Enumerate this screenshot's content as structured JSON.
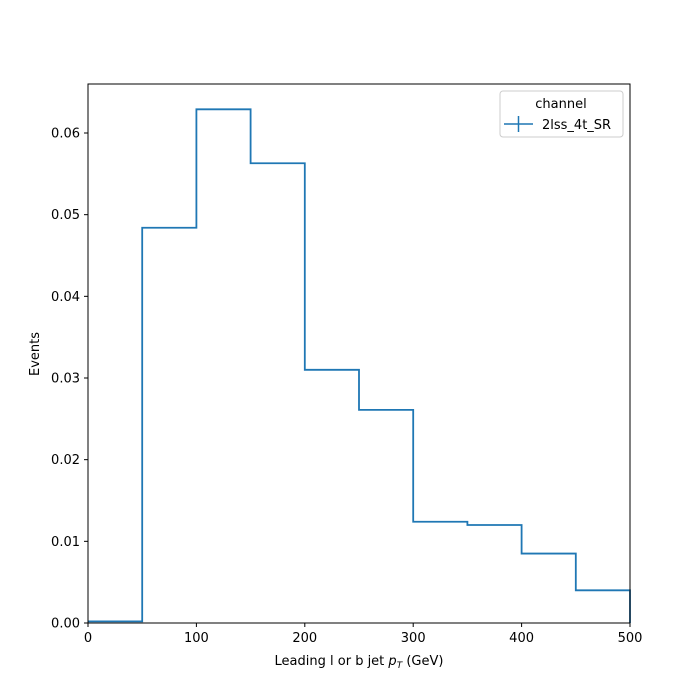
{
  "chart_data": {
    "type": "histogram-step",
    "xlabel_prefix": "Leading l or b jet ",
    "xlabel_math": "p",
    "xlabel_sub": "T",
    "xlabel_suffix": " (GeV)",
    "ylabel": "Events",
    "xlim": [
      0,
      500
    ],
    "ylim": [
      0,
      0.066
    ],
    "xticks": [
      0,
      100,
      200,
      300,
      400,
      500
    ],
    "xtick_labels": [
      "0",
      "100",
      "200",
      "300",
      "400",
      "500"
    ],
    "yticks": [
      0.0,
      0.01,
      0.02,
      0.03,
      0.04,
      0.05,
      0.06
    ],
    "ytick_labels": [
      "0.00",
      "0.01",
      "0.02",
      "0.03",
      "0.04",
      "0.05",
      "0.06"
    ],
    "bin_edges": [
      0,
      50,
      100,
      150,
      200,
      250,
      300,
      350,
      400,
      450,
      500
    ],
    "series": [
      {
        "name": "2lss_4t_SR",
        "color": "#1f77b4",
        "values": [
          0.0002,
          0.0484,
          0.0629,
          0.0563,
          0.031,
          0.0261,
          0.0124,
          0.012,
          0.0085,
          0.004
        ]
      }
    ],
    "legend": {
      "title": "channel",
      "location": "top-right"
    },
    "grid": false
  }
}
